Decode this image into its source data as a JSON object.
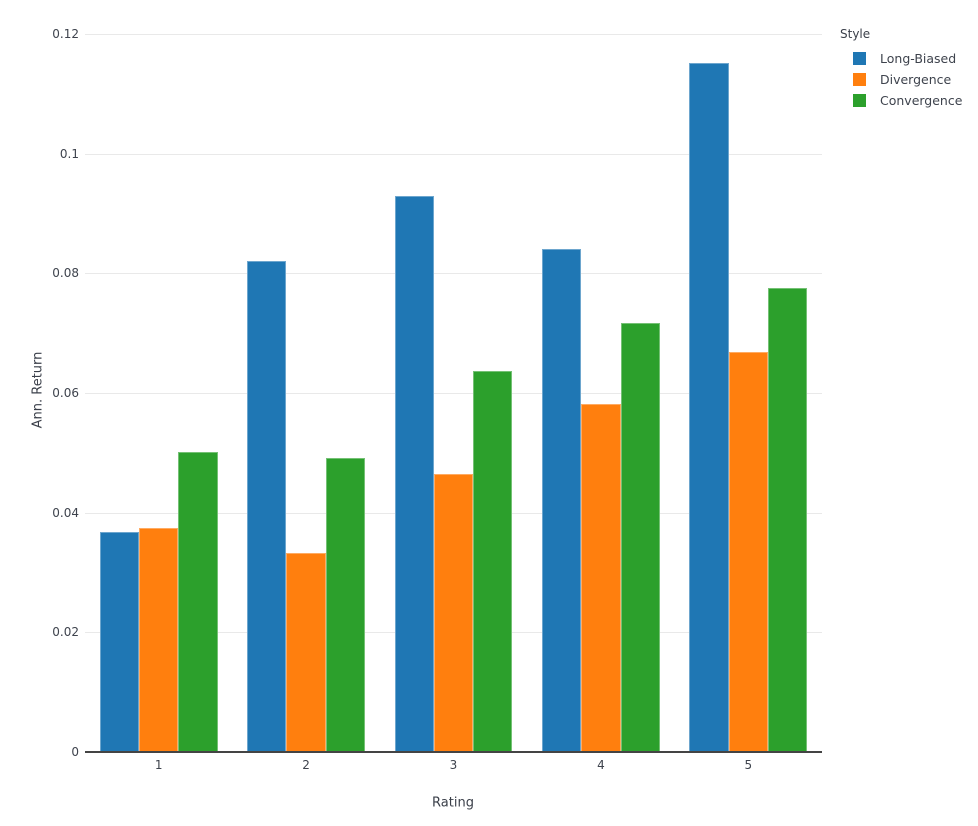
{
  "colors": {
    "background": "#ffffff",
    "gridline": "#e9e9e9",
    "axis_line": "#444444",
    "label_text": "#3e434d",
    "title_text": "#3a3f49"
  },
  "chart_data": {
    "type": "bar",
    "title": "",
    "xlabel": "Rating",
    "ylabel": "Ann. Return",
    "categories": [
      "1",
      "2",
      "3",
      "4",
      "5"
    ],
    "series": [
      {
        "name": "Long-Biased",
        "color": "#1f77b4",
        "values": [
          0.0367,
          0.0821,
          0.093,
          0.084,
          0.1151
        ]
      },
      {
        "name": "Divergence",
        "color": "#ff7f0e",
        "values": [
          0.0375,
          0.0333,
          0.0465,
          0.0582,
          0.0668
        ]
      },
      {
        "name": "Convergence",
        "color": "#2ca02c",
        "values": [
          0.0501,
          0.0491,
          0.0637,
          0.0717,
          0.0776
        ]
      }
    ],
    "ylim": [
      0,
      0.12
    ],
    "yticks": [
      0,
      0.02,
      0.04,
      0.06,
      0.08,
      0.1,
      0.12
    ],
    "ytick_labels": [
      "0",
      "0.02",
      "0.04",
      "0.06",
      "0.08",
      "0.1",
      "0.12"
    ],
    "grid": true,
    "legend": {
      "title": "Style",
      "position": "top-right-outside",
      "entries": [
        "Long-Biased",
        "Divergence",
        "Convergence"
      ]
    }
  }
}
